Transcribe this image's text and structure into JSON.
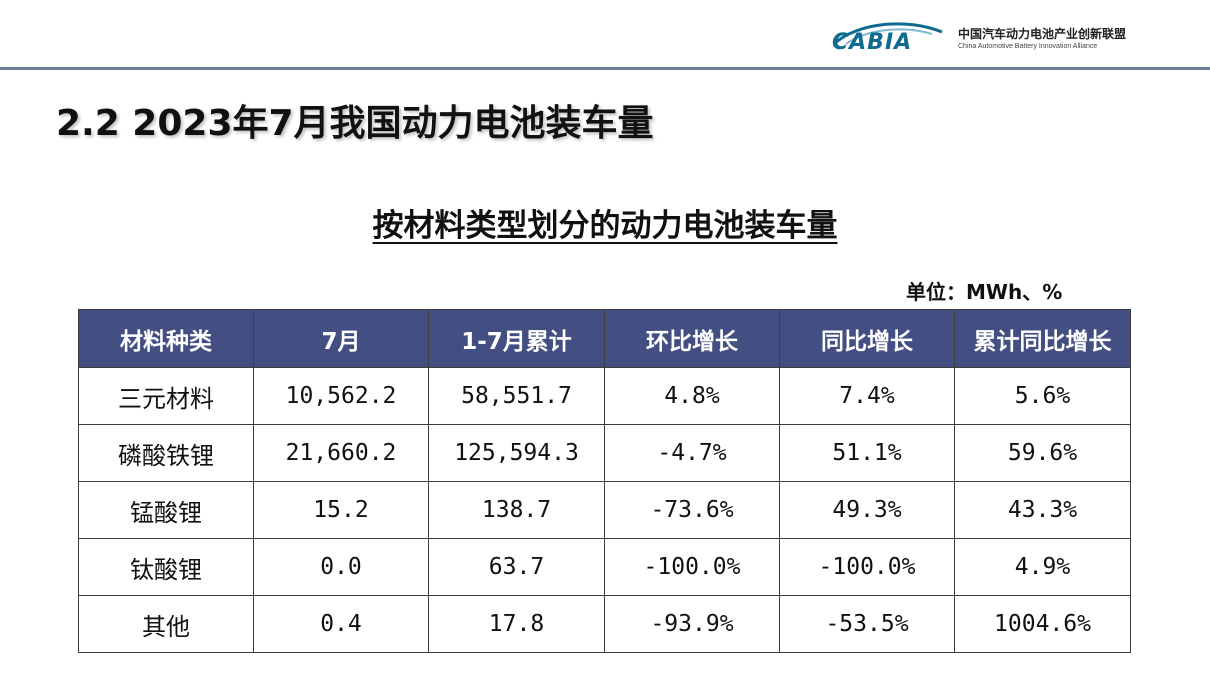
{
  "header": {
    "logo_text": "CABIA",
    "org_name_cn": "中国汽车动力电池产业创新联盟",
    "org_name_en": "China Automotive Battery Innovation Alliance"
  },
  "section_title": "2.2 2023年7月我国动力电池装车量",
  "table_title": "按材料类型划分的动力电池装车量",
  "unit": "单位：MWh、%",
  "table": {
    "columns": [
      "材料种类",
      "7月",
      "1-7月累计",
      "环比增长",
      "同比增长",
      "累计同比增长"
    ],
    "rows": [
      [
        "三元材料",
        "10,562.2",
        "58,551.7",
        "4.8%",
        "7.4%",
        "5.6%"
      ],
      [
        "磷酸铁锂",
        "21,660.2",
        "125,594.3",
        "-4.7%",
        "51.1%",
        "59.6%"
      ],
      [
        "锰酸锂",
        "15.2",
        "138.7",
        "-73.6%",
        "49.3%",
        "43.3%"
      ],
      [
        "钛酸锂",
        "0.0",
        "63.7",
        "-100.0%",
        "-100.0%",
        "4.9%"
      ],
      [
        "其他",
        "0.4",
        "17.8",
        "-93.9%",
        "-53.5%",
        "1004.6%"
      ]
    ]
  },
  "colors": {
    "header_bg": "#434f82",
    "header_text": "#ffffff",
    "rule_line": "#6e7f9b",
    "logo": "#0f6b8f"
  }
}
